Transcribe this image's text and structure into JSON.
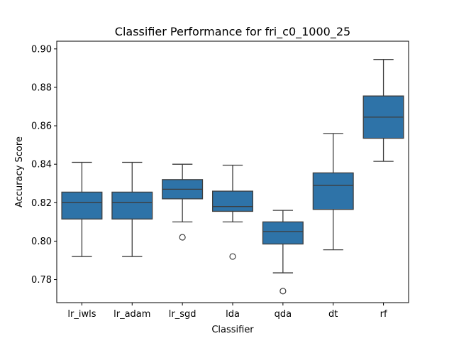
{
  "chart_data": {
    "type": "box",
    "title": "Classifier Performance for fri_c0_1000_25",
    "xlabel": "Classifier",
    "ylabel": "Accuracy Score",
    "ylim": [
      0.768,
      0.904
    ],
    "yticks": [
      "0.78",
      "0.80",
      "0.82",
      "0.84",
      "0.86",
      "0.88",
      "0.90"
    ],
    "grid": false,
    "box_color": "#2e73a8",
    "categories": [
      "lr_iwls",
      "lr_adam",
      "lr_sgd",
      "lda",
      "qda",
      "dt",
      "rf"
    ],
    "boxes": [
      {
        "whisker_low": 0.792,
        "q1": 0.8115,
        "median": 0.82,
        "q3": 0.8255,
        "whisker_high": 0.841,
        "outliers": []
      },
      {
        "whisker_low": 0.792,
        "q1": 0.8115,
        "median": 0.82,
        "q3": 0.8255,
        "whisker_high": 0.841,
        "outliers": []
      },
      {
        "whisker_low": 0.81,
        "q1": 0.822,
        "median": 0.827,
        "q3": 0.832,
        "whisker_high": 0.84,
        "outliers": [
          0.802
        ]
      },
      {
        "whisker_low": 0.81,
        "q1": 0.8155,
        "median": 0.818,
        "q3": 0.826,
        "whisker_high": 0.8395,
        "outliers": [
          0.792
        ]
      },
      {
        "whisker_low": 0.7835,
        "q1": 0.7985,
        "median": 0.805,
        "q3": 0.81,
        "whisker_high": 0.816,
        "outliers": [
          0.774
        ]
      },
      {
        "whisker_low": 0.7955,
        "q1": 0.8165,
        "median": 0.829,
        "q3": 0.8355,
        "whisker_high": 0.856,
        "outliers": []
      },
      {
        "whisker_low": 0.8415,
        "q1": 0.8535,
        "median": 0.8645,
        "q3": 0.8755,
        "whisker_high": 0.8945,
        "outliers": []
      }
    ]
  }
}
